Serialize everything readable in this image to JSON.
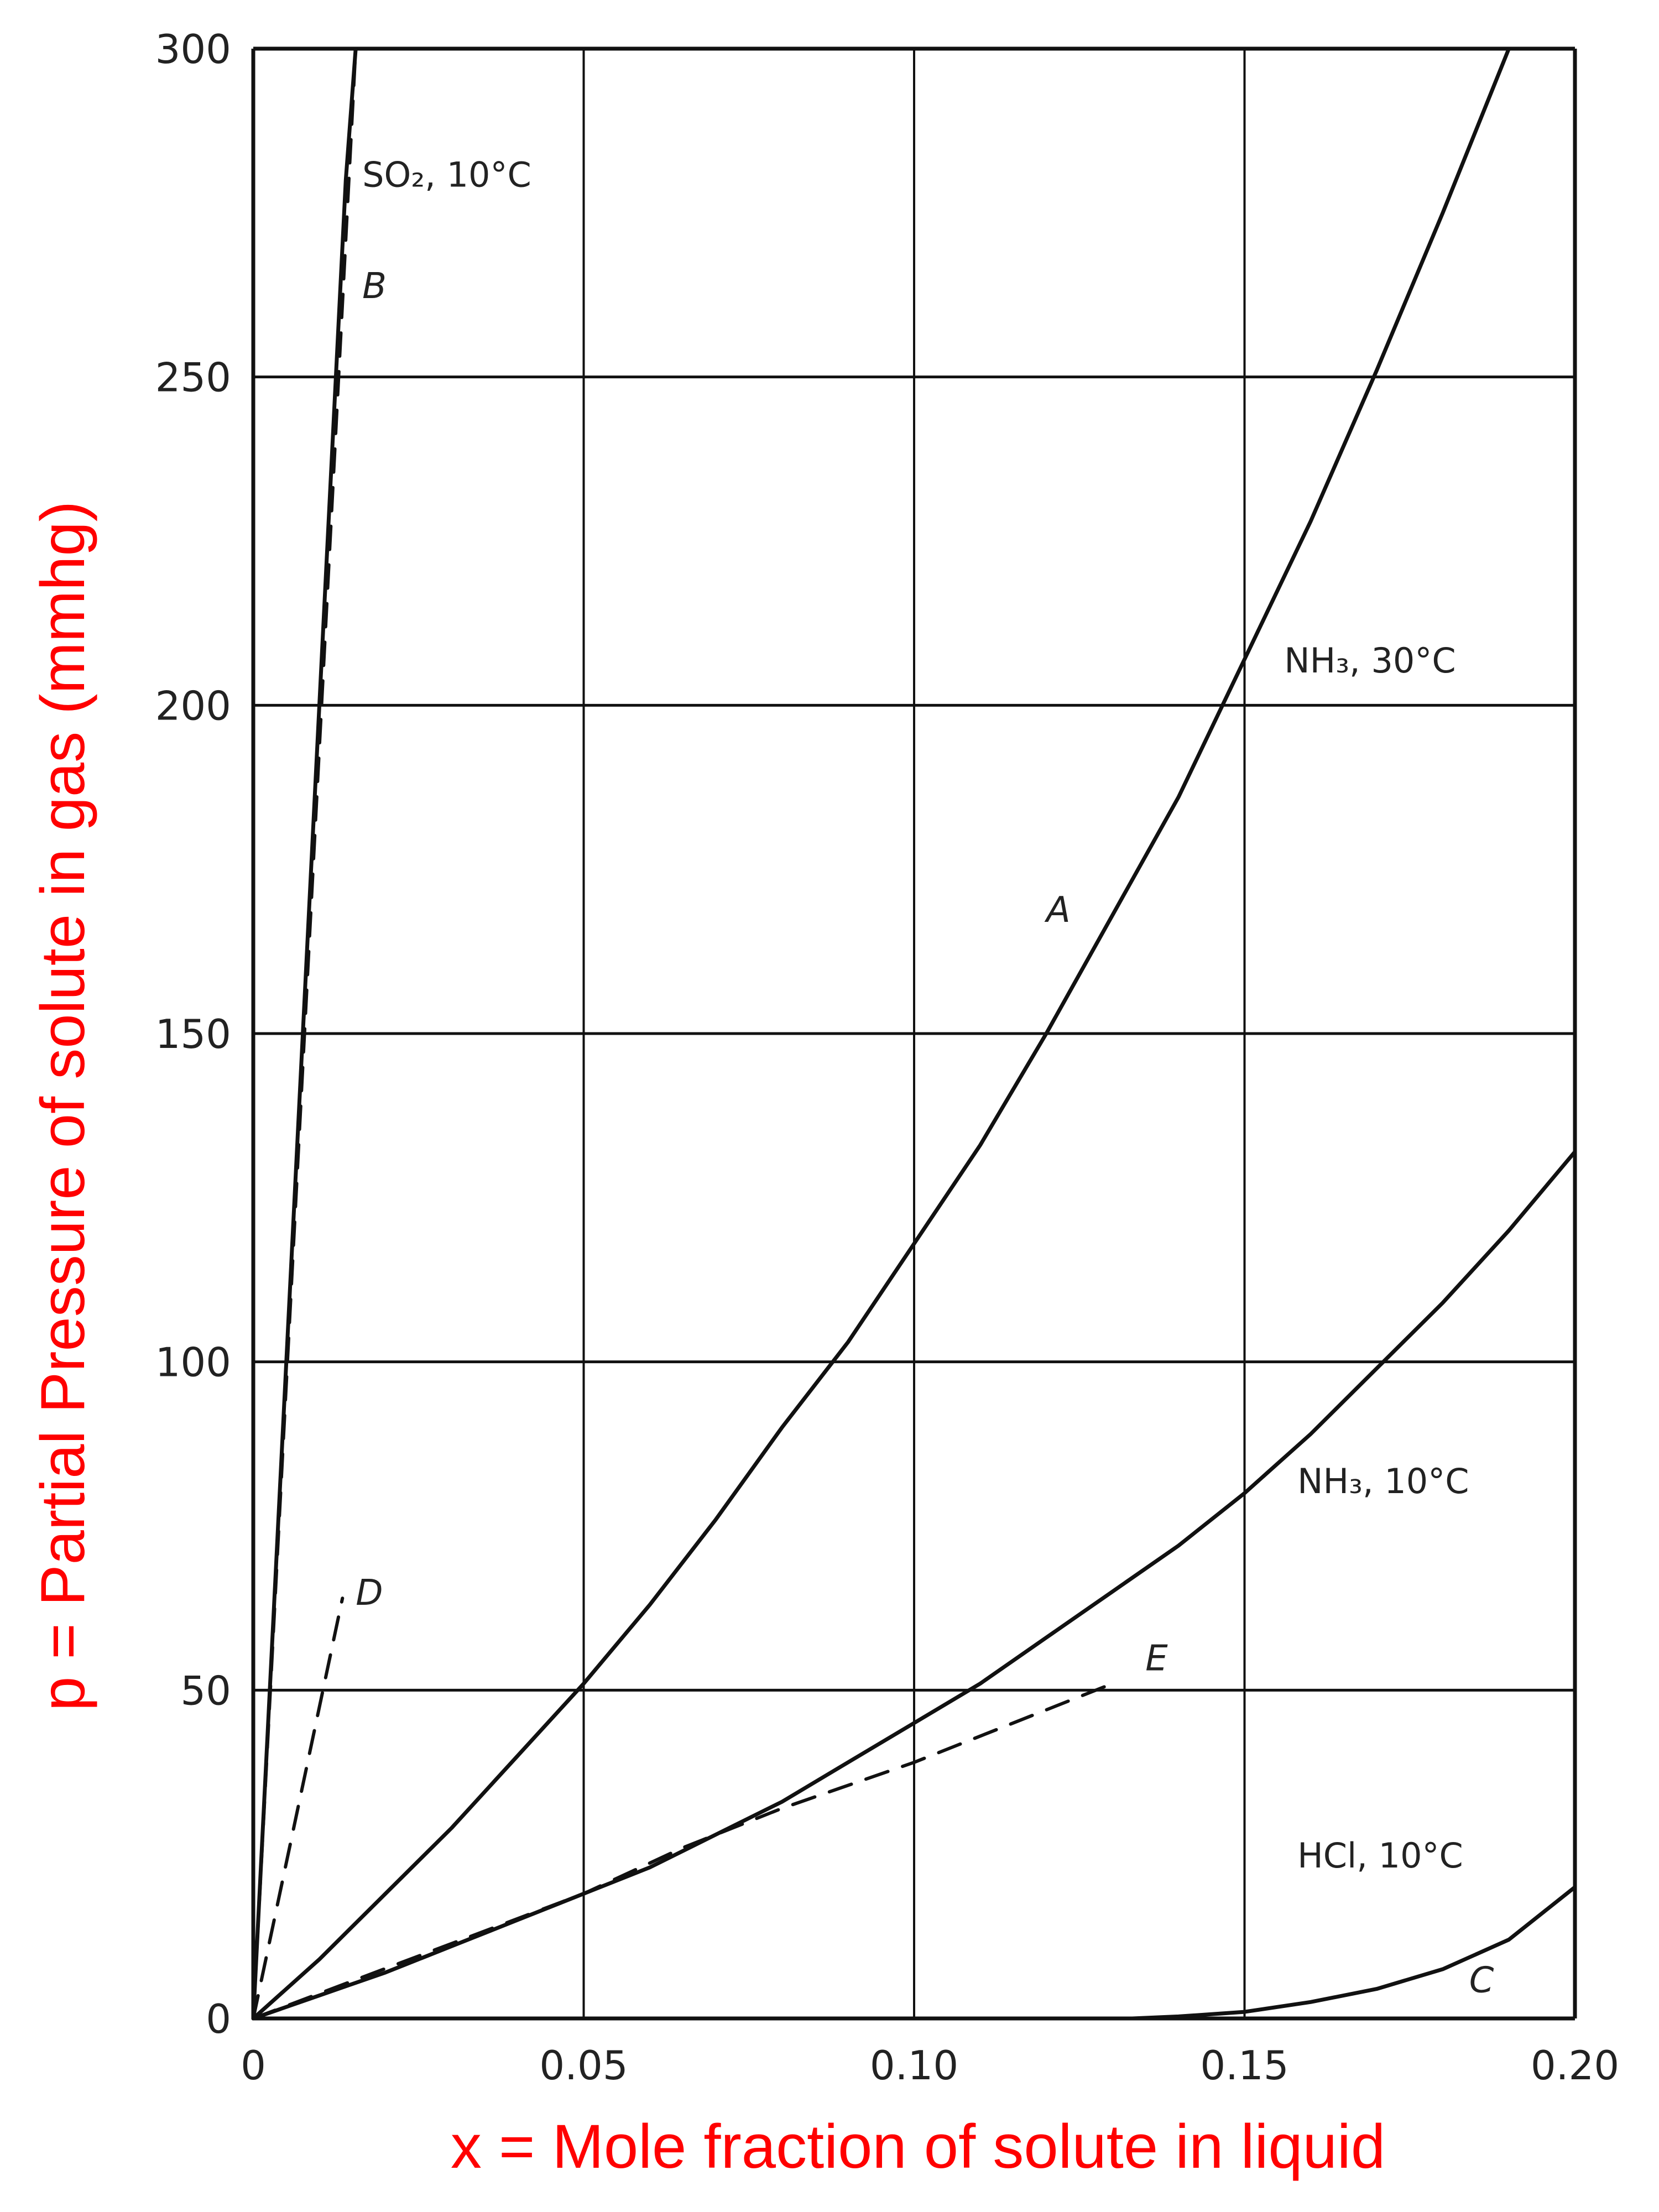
{
  "chart_data": {
    "type": "line",
    "xlabel": "x = Mole fraction of solute in liquid",
    "ylabel": "p = Partial Pressure of solute in gas (mmhg)",
    "xlim": [
      0,
      0.2
    ],
    "ylim": [
      0,
      300
    ],
    "grid": true,
    "xticks": [
      0,
      0.05,
      0.1,
      0.15,
      0.2
    ],
    "xtick_labels": [
      "0",
      "0.05",
      "0.10",
      "0.15",
      "0.20"
    ],
    "yticks": [
      0,
      50,
      100,
      150,
      200,
      250,
      300
    ],
    "ytick_labels": [
      "0",
      "50",
      "100",
      "150",
      "200",
      "250",
      "300"
    ],
    "label_color": "#ff0000",
    "series": [
      {
        "name": "SO₂, 10°C",
        "letter": "B",
        "style": "solid",
        "x": [
          0,
          0.002,
          0.004,
          0.006,
          0.008,
          0.01,
          0.012,
          0.014,
          0.0155
        ],
        "y": [
          0,
          40,
          80,
          120,
          160,
          200,
          240,
          280,
          300
        ]
      },
      {
        "name": "",
        "letter": "B",
        "style": "dashed",
        "x": [
          0,
          0.0155
        ],
        "y": [
          0,
          300
        ]
      },
      {
        "name": "NH₃, 30°C",
        "letter": "A",
        "style": "solid",
        "x": [
          0,
          0.01,
          0.02,
          0.03,
          0.04,
          0.05,
          0.06,
          0.07,
          0.08,
          0.09,
          0.1,
          0.11,
          0.12,
          0.13,
          0.14,
          0.15,
          0.16,
          0.17,
          0.18,
          0.19
        ],
        "y": [
          0,
          9,
          19,
          29,
          40,
          51,
          63,
          76,
          90,
          103,
          118,
          133,
          150,
          168,
          186,
          207,
          228,
          251,
          275,
          300
        ]
      },
      {
        "name": "NH₃, 10°C",
        "letter": "",
        "style": "solid",
        "x": [
          0,
          0.01,
          0.02,
          0.03,
          0.04,
          0.05,
          0.06,
          0.07,
          0.08,
          0.09,
          0.1,
          0.11,
          0.12,
          0.13,
          0.14,
          0.15,
          0.16,
          0.17,
          0.18,
          0.19,
          0.2
        ],
        "y": [
          0,
          3.5,
          7,
          11,
          15,
          19,
          23,
          28,
          33,
          39,
          45,
          51,
          58,
          65,
          72,
          80,
          89,
          99,
          109,
          120,
          132
        ]
      },
      {
        "name": "HCl, 10°C",
        "letter": "C",
        "style": "solid",
        "x": [
          0.133,
          0.14,
          0.15,
          0.16,
          0.17,
          0.18,
          0.19,
          0.2
        ],
        "y": [
          0,
          0.3,
          1,
          2.5,
          4.5,
          7.5,
          12,
          20
        ]
      },
      {
        "name": "",
        "letter": "D",
        "style": "dashed",
        "x": [
          0,
          0.0135
        ],
        "y": [
          0,
          64
        ]
      },
      {
        "name": "",
        "letter": "E",
        "style": "dashed",
        "x": [
          0,
          0.05,
          0.065,
          0.08,
          0.1,
          0.115,
          0.13
        ],
        "y": [
          0,
          19,
          26,
          32,
          39,
          45,
          51
        ]
      }
    ]
  }
}
